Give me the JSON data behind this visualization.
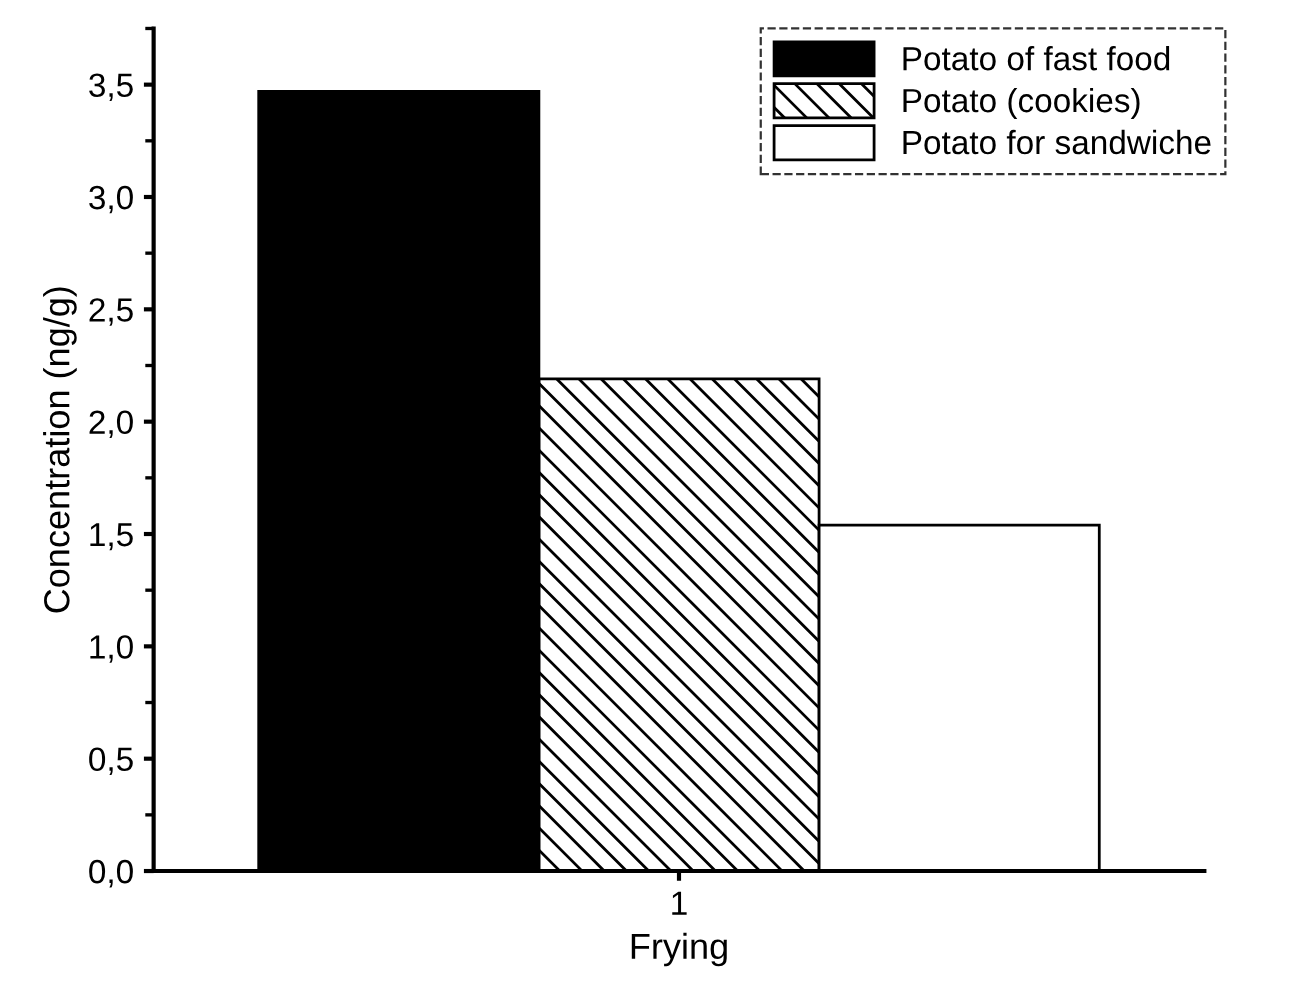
{
  "chart_data": {
    "type": "bar",
    "xlabel": "Frying",
    "ylabel": "Concentration (ng/g)",
    "categories": [
      "1"
    ],
    "series": [
      {
        "name": "Potato of fast food",
        "color": "#000000",
        "values": [
          3.47
        ]
      },
      {
        "name": "Potato (cookies)",
        "color": "#000000",
        "values": [
          2.19
        ]
      },
      {
        "name": "Potato for sandwiche",
        "color": "#ffffff",
        "values": [
          1.54
        ]
      }
    ],
    "ylim": [
      0,
      3.75
    ],
    "yticks": [
      {
        "value": 0,
        "label": "0,0"
      },
      {
        "value": 0.5,
        "label": "0,5"
      },
      {
        "value": 1.0,
        "label": "1,0"
      },
      {
        "value": 1.5,
        "label": "1,5"
      },
      {
        "value": 2.0,
        "label": "2,0"
      },
      {
        "value": 2.5,
        "label": "2,5"
      },
      {
        "value": 3.0,
        "label": "3,0"
      },
      {
        "value": 3.5,
        "label": "3,5"
      }
    ],
    "grid": false,
    "legend": "top right"
  }
}
